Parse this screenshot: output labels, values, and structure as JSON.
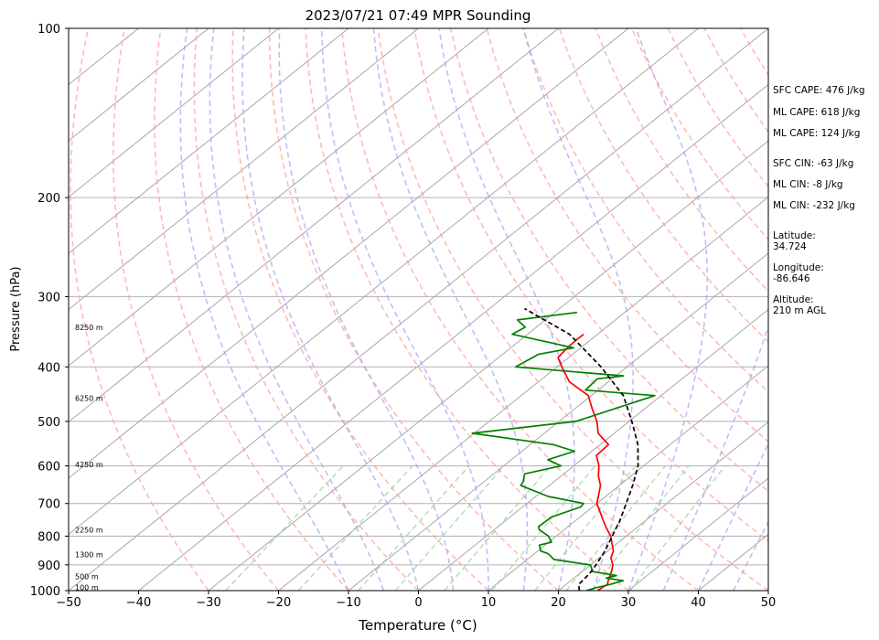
{
  "chart_data": {
    "type": "line",
    "title": "2023/07/21 07:49 MPR Sounding",
    "xlabel": "Temperature (°C)",
    "ylabel": "Pressure (hPa)",
    "xlim": [
      -50,
      50
    ],
    "ylim": [
      1000,
      100
    ],
    "y_scale": "log",
    "grid": true,
    "skew_deg_per_decade": 100,
    "x_ticks": [
      -50,
      -40,
      -30,
      -20,
      -10,
      0,
      10,
      20,
      30,
      40,
      50
    ],
    "x_tick_labels": [
      "−50",
      "−40",
      "−30",
      "−20",
      "−10",
      "0",
      "10",
      "20",
      "30",
      "40",
      "50"
    ],
    "y_ticks": [
      100,
      200,
      300,
      400,
      500,
      600,
      700,
      800,
      900,
      1000
    ],
    "y_tick_labels": [
      "100",
      "200",
      "300",
      "400",
      "500",
      "600",
      "700",
      "800",
      "900",
      "1000"
    ],
    "height_labels": [
      {
        "text": "8250 m",
        "p": 340
      },
      {
        "text": "6250 m",
        "p": 455
      },
      {
        "text": "4250 m",
        "p": 597
      },
      {
        "text": "2250 m",
        "p": 780
      },
      {
        "text": "1300 m",
        "p": 863
      },
      {
        "text": "500 m",
        "p": 943
      },
      {
        "text": "100 m",
        "p": 987
      }
    ],
    "series": [
      {
        "color": "#ff0000",
        "p": [
          1000,
          975,
          950,
          925,
          900,
          875,
          850,
          825,
          800,
          775,
          750,
          725,
          700,
          675,
          650,
          625,
          600,
          575,
          550,
          525,
          500,
          475,
          450,
          425,
          400,
          385,
          370,
          360,
          350
        ],
        "t": [
          25.6,
          25.9,
          25.0,
          24.2,
          23.2,
          21.7,
          20.8,
          19.3,
          17.8,
          15.8,
          13.9,
          12.0,
          10.0,
          8.7,
          7.3,
          5.3,
          3.6,
          1.4,
          1.2,
          -2.3,
          -4.6,
          -7.5,
          -10.4,
          -15.6,
          -19.3,
          -21.5,
          -21.9,
          -22.0,
          -22.0
        ]
      },
      {
        "color": "#008000",
        "p": [
          1000,
          990,
          975,
          960,
          950,
          940,
          925,
          900,
          880,
          860,
          850,
          830,
          820,
          800,
          780,
          770,
          740,
          710,
          700,
          680,
          650,
          640,
          620,
          600,
          585,
          565,
          550,
          525,
          500,
          450,
          440,
          420,
          415,
          400,
          380,
          370,
          350,
          340,
          330,
          320
        ],
        "t": [
          24.0,
          24.7,
          26.3,
          27.5,
          24.6,
          25.6,
          21.5,
          20.0,
          13.8,
          12.0,
          10.4,
          9.2,
          10.4,
          8.9,
          6.5,
          5.8,
          5.9,
          8.3,
          8.1,
          1.8,
          -4.1,
          -4.4,
          -5.6,
          -1.8,
          -4.8,
          -2.5,
          -6.7,
          -20.3,
          -7.6,
          -0.9,
          -11.8,
          -12.1,
          -8.9,
          -25.9,
          -24.9,
          -21.0,
          -32.2,
          -31.6,
          -34.0,
          -26.8
        ]
      },
      {
        "color": "#000000",
        "dashed": true,
        "p": [
          1000,
          975,
          950,
          925,
          900,
          850,
          800,
          750,
          700,
          650,
          600,
          550,
          500,
          450,
          400,
          350,
          315
        ],
        "t": [
          23.0,
          21.8,
          21.6,
          21.3,
          20.8,
          19.6,
          18.0,
          16.3,
          14.2,
          11.9,
          9.2,
          5.4,
          0.4,
          -5.4,
          -13.7,
          -24.0,
          -35.0
        ]
      }
    ],
    "annotations": [
      "SFC CAPE: 476 J/kg",
      "ML CAPE: 618 J/kg",
      "ML CAPE: 124 J/kg",
      "SFC CIN: -63 J/kg",
      "ML CIN: -8 J/kg",
      "ML CIN: -232 J/kg",
      "Latitude:",
      "34.724",
      "Longitude:",
      "-86.646",
      "Altitude:",
      "210 m AGL"
    ]
  }
}
